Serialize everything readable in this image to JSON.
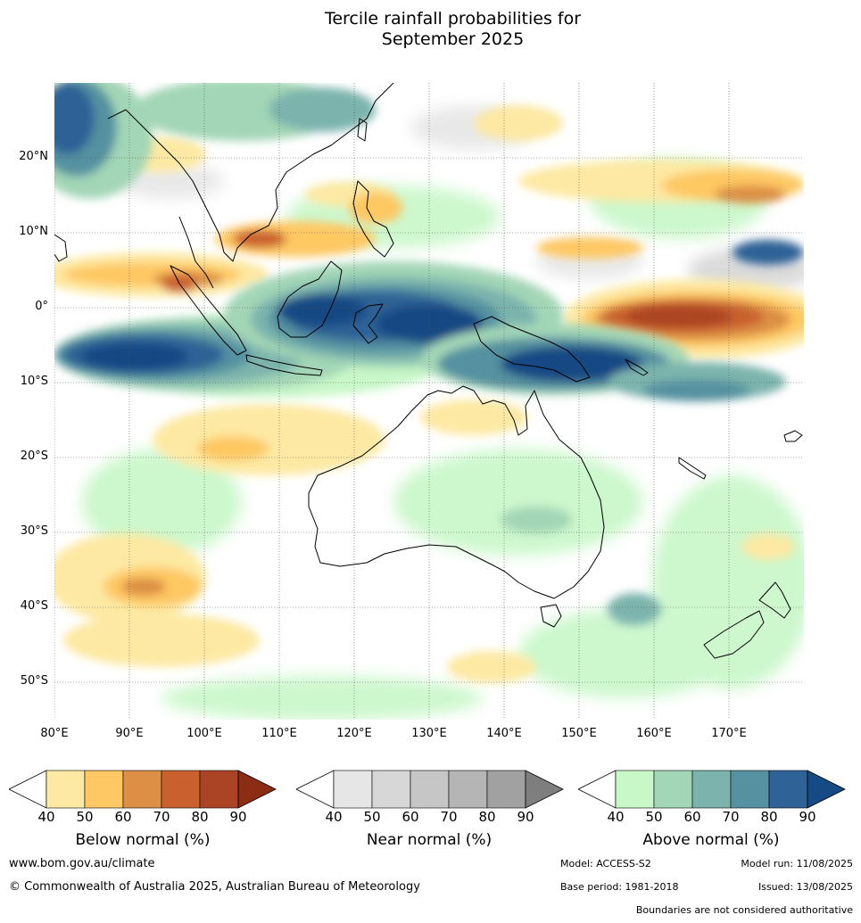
{
  "title_line1": "Tercile rainfall probabilities for",
  "title_line2": "September 2025",
  "lat_labels": [
    "20°N",
    "10°N",
    "0°",
    "10°S",
    "20°S",
    "30°S",
    "40°S",
    "50°S"
  ],
  "lon_labels": [
    "80°E",
    "90°E",
    "100°E",
    "110°E",
    "120°E",
    "130°E",
    "140°E",
    "150°E",
    "160°E",
    "170°E"
  ],
  "colorbars": [
    {
      "label": "Below normal (%)",
      "ticks": [
        "40",
        "50",
        "60",
        "70",
        "80",
        "90"
      ],
      "colors": [
        "#fde9a3",
        "#fec864",
        "#dc8f45",
        "#c9602e",
        "#ab4424",
        "#8b2d14"
      ]
    },
    {
      "label": "Near normal (%)",
      "ticks": [
        "40",
        "50",
        "60",
        "70",
        "80",
        "90"
      ],
      "colors": [
        "#e6e6e6",
        "#d7d7d7",
        "#c6c6c6",
        "#b5b5b5",
        "#a1a1a1",
        "#7e7e7e"
      ]
    },
    {
      "label": "Above normal (%)",
      "ticks": [
        "40",
        "50",
        "60",
        "70",
        "80",
        "90"
      ],
      "colors": [
        "#c8f7c8",
        "#a3d6b6",
        "#7cb4ad",
        "#5591a0",
        "#2f6296",
        "#154a84"
      ]
    }
  ],
  "footer": {
    "url": "www.bom.gov.au/climate",
    "copyright": "© Commonwealth of Australia 2025, Australian Bureau of Meteorology",
    "model": "Model: ACCESS-S2",
    "model_run": "Model run: 11/08/2025",
    "base_period": "Base period: 1981-2018",
    "issued": "Issued: 13/08/2025",
    "boundaries": "Boundaries are not considered authoritative"
  }
}
